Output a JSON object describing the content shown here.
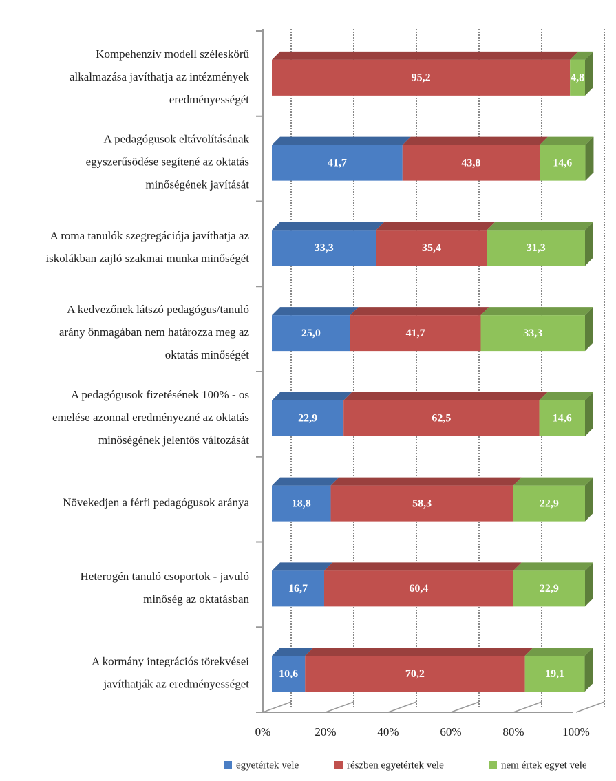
{
  "chart_data": {
    "type": "stacked-bar-horizontal",
    "categories": [
      [
        "Kompehenzív modell széleskörű",
        "alkalmazása javíthatja az intézmények",
        "eredményességét"
      ],
      [
        "A pedagógusok eltávolításának",
        "egyszerűsödése segítené az oktatás",
        "minőségének javítását"
      ],
      [
        "A roma tanulók szegregációja javíthatja az",
        "iskolákban zajló szakmai munka minőségét"
      ],
      [
        "A kedvezőnek látszó pedagógus/tanuló",
        "arány önmagában nem határozza meg az",
        "oktatás minőségét"
      ],
      [
        "A pedagógusok fizetésének 100% - os",
        "emelése azonnal eredményezné az oktatás",
        "minőségének jelentős változását"
      ],
      [
        "Növekedjen a férfi pedagógusok aránya"
      ],
      [
        "Heterogén tanuló csoportok - javuló",
        "minőség az oktatásban"
      ],
      [
        "A kormány integrációs törekvései",
        "javíthatják az eredményességet"
      ]
    ],
    "series": [
      {
        "name": "egyetértek vele",
        "color": "#4a7ec4",
        "values": [
          null,
          41.7,
          33.3,
          25.0,
          22.9,
          18.8,
          16.7,
          10.6
        ],
        "value_labels": [
          null,
          "41,7",
          "33,3",
          "25,0",
          "22,9",
          "18,8",
          "16,7",
          "10,6"
        ]
      },
      {
        "name": "részben egyetértek vele",
        "color": "#c0504d",
        "values": [
          95.2,
          43.8,
          35.4,
          41.7,
          62.5,
          58.3,
          60.4,
          70.2
        ],
        "value_labels": [
          "95,2",
          "43,8",
          "35,4",
          "41,7",
          "62,5",
          "58,3",
          "60,4",
          "70,2"
        ]
      },
      {
        "name": "nem értek egyet vele",
        "color": "#8fc25a",
        "values": [
          4.8,
          14.6,
          31.3,
          33.3,
          14.6,
          22.9,
          22.9,
          19.1
        ],
        "value_labels": [
          "4,8",
          "14,6",
          "31,3",
          "33,3",
          "14,6",
          "22,9",
          "22,9",
          "19,1"
        ]
      }
    ],
    "xlim": [
      0,
      100
    ],
    "xticks": [
      {
        "value": 0,
        "label": "0%"
      },
      {
        "value": 20,
        "label": "20%"
      },
      {
        "value": 40,
        "label": "40%"
      },
      {
        "value": 60,
        "label": "60%"
      },
      {
        "value": 80,
        "label": "80%"
      },
      {
        "value": 100,
        "label": "100%"
      }
    ],
    "grid": true
  }
}
